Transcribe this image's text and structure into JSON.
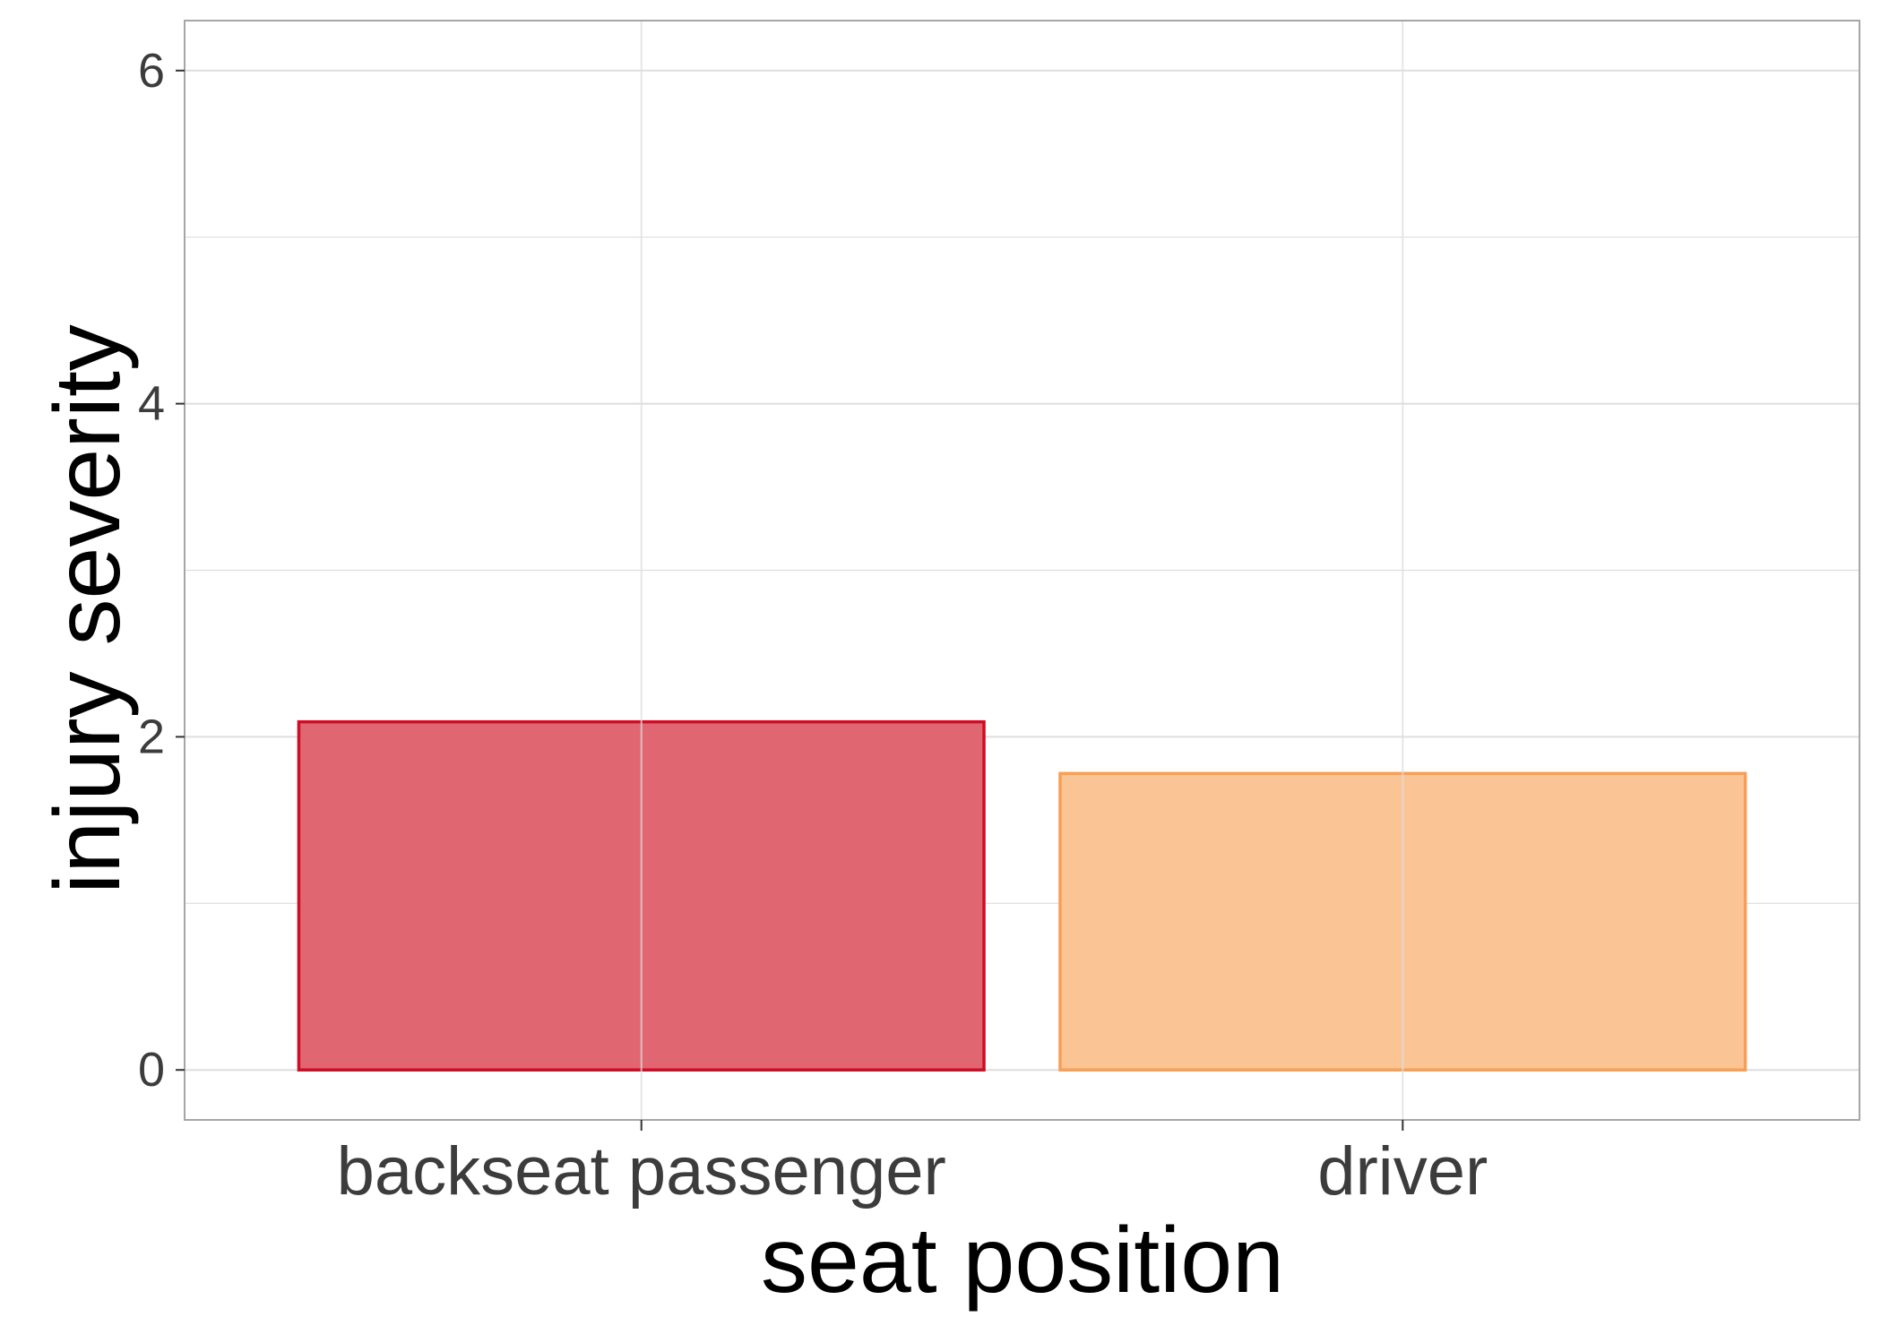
{
  "chart_data": {
    "type": "bar",
    "title": "",
    "xlabel": "seat position",
    "ylabel": "injury severity",
    "categories": [
      "backseat passenger",
      "driver"
    ],
    "values": [
      2.09,
      1.78
    ],
    "ylim": [
      -0.3,
      6.3
    ],
    "yticks": [
      0,
      2,
      4,
      6
    ],
    "yticks_minor": [
      1,
      3,
      5
    ],
    "grid": true,
    "legend": "none",
    "colors": {
      "fills": [
        "#e06672",
        "#fbc495"
      ],
      "strokes": [
        "#cf0d24",
        "#f89f55"
      ],
      "grid": "#dedede",
      "panel_border": "#a6a6a6"
    }
  }
}
